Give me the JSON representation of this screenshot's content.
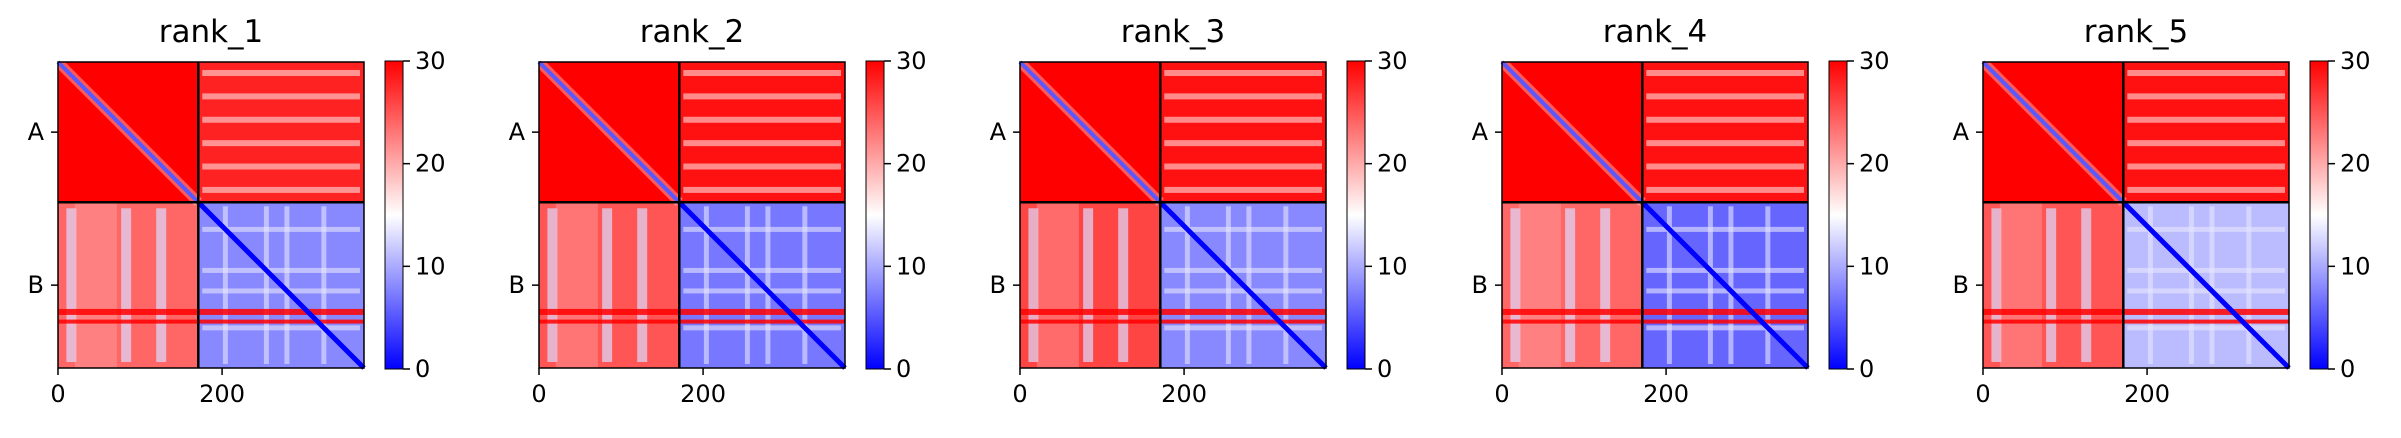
{
  "chart_data": [
    {
      "type": "heatmap",
      "title": "rank_1",
      "chain_labels": [
        "A",
        "B"
      ],
      "chain_lengths": [
        171,
        202
      ],
      "xticks": [
        0,
        200
      ],
      "xlim": [
        0,
        373
      ],
      "colorbar": {
        "ticks": [
          0,
          10,
          20,
          30
        ],
        "vmin": 0,
        "vmax": 30,
        "colors": [
          "#0000ff",
          "#ffffff",
          "#ff0000"
        ]
      },
      "block_values": {
        "AA_diag": 0,
        "AA_off": 30,
        "AB": 28,
        "BA": 24,
        "BB_diag": 0,
        "BB_off": 8,
        "BB_band": 30
      },
      "rows_bands": [
        130,
        143
      ],
      "bb_stripe_cols": [
        30,
        80,
        105,
        150
      ]
    },
    {
      "type": "heatmap",
      "title": "rank_2",
      "chain_labels": [
        "A",
        "B"
      ],
      "chain_lengths": [
        171,
        202
      ],
      "xticks": [
        0,
        200
      ],
      "xlim": [
        0,
        373
      ],
      "colorbar": {
        "ticks": [
          0,
          10,
          20,
          30
        ],
        "vmin": 0,
        "vmax": 30,
        "colors": [
          "#0000ff",
          "#ffffff",
          "#ff0000"
        ]
      },
      "block_values": {
        "AA_diag": 0,
        "AA_off": 30,
        "AB": 29,
        "BA": 25,
        "BB_diag": 0,
        "BB_off": 7,
        "BB_band": 30
      },
      "rows_bands": [
        130,
        143
      ],
      "bb_stripe_cols": [
        30,
        80,
        105,
        150
      ]
    },
    {
      "type": "heatmap",
      "title": "rank_3",
      "chain_labels": [
        "A",
        "B"
      ],
      "chain_lengths": [
        171,
        202
      ],
      "xticks": [
        0,
        200
      ],
      "xlim": [
        0,
        373
      ],
      "colorbar": {
        "ticks": [
          0,
          10,
          20,
          30
        ],
        "vmin": 0,
        "vmax": 30,
        "colors": [
          "#0000ff",
          "#ffffff",
          "#ff0000"
        ]
      },
      "block_values": {
        "AA_diag": 0,
        "AA_off": 30,
        "AB": 29,
        "BA": 26,
        "BB_diag": 0,
        "BB_off": 8,
        "BB_band": 30
      },
      "rows_bands": [
        130,
        143
      ],
      "bb_stripe_cols": [
        30,
        80,
        105,
        150
      ]
    },
    {
      "type": "heatmap",
      "title": "rank_4",
      "chain_labels": [
        "A",
        "B"
      ],
      "chain_lengths": [
        171,
        202
      ],
      "xticks": [
        0,
        200
      ],
      "xlim": [
        0,
        373
      ],
      "colorbar": {
        "ticks": [
          0,
          10,
          20,
          30
        ],
        "vmin": 0,
        "vmax": 30,
        "colors": [
          "#0000ff",
          "#ffffff",
          "#ff0000"
        ]
      },
      "block_values": {
        "AA_diag": 0,
        "AA_off": 30,
        "AB": 29,
        "BA": 24,
        "BB_diag": 0,
        "BB_off": 6,
        "BB_band": 30
      },
      "rows_bands": [
        130,
        143
      ],
      "bb_stripe_cols": [
        30,
        80,
        105,
        150
      ]
    },
    {
      "type": "heatmap",
      "title": "rank_5",
      "chain_labels": [
        "A",
        "B"
      ],
      "chain_lengths": [
        171,
        202
      ],
      "xticks": [
        0,
        200
      ],
      "xlim": [
        0,
        373
      ],
      "colorbar": {
        "ticks": [
          0,
          10,
          20,
          30
        ],
        "vmin": 0,
        "vmax": 30,
        "colors": [
          "#0000ff",
          "#ffffff",
          "#ff0000"
        ]
      },
      "block_values": {
        "AA_diag": 0,
        "AA_off": 30,
        "AB": 29,
        "BA": 25,
        "BB_diag": 0,
        "BB_off": 11,
        "BB_band": 30
      },
      "rows_bands": [
        130,
        143
      ],
      "bb_stripe_cols": [
        30,
        80,
        105,
        150
      ]
    }
  ]
}
